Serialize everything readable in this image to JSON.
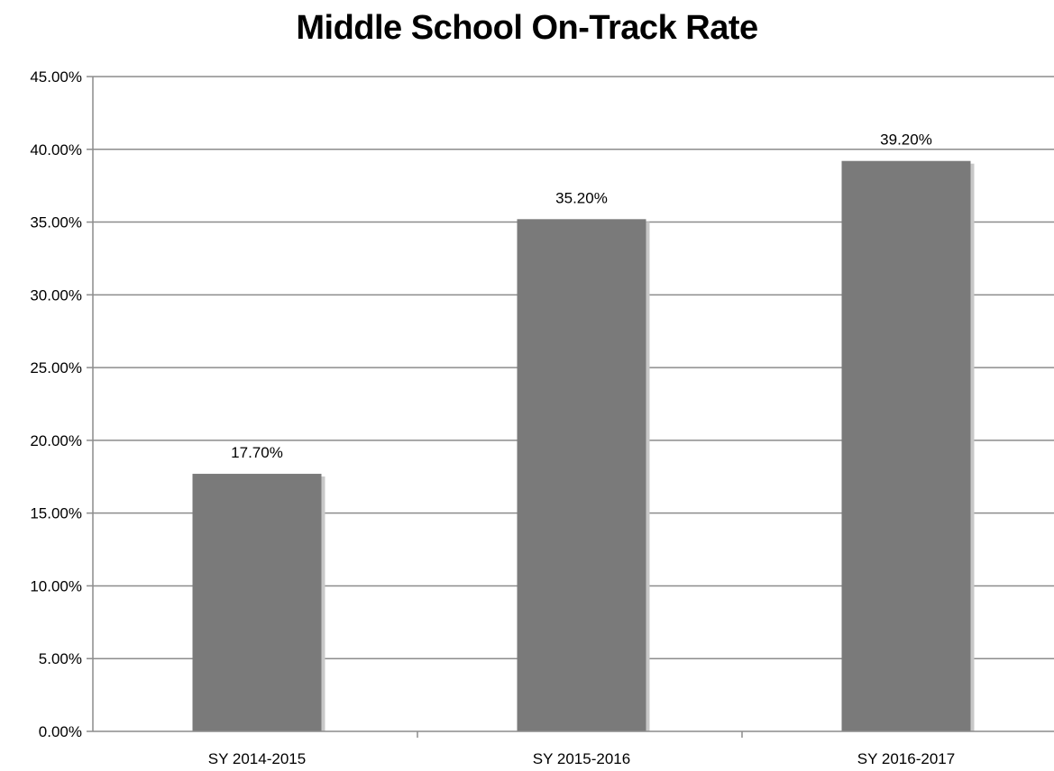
{
  "chart_data": {
    "type": "bar",
    "title": "Middle School On-Track Rate",
    "xlabel": "",
    "ylabel": "",
    "categories": [
      "SY 2014-2015",
      "SY 2015-2016",
      "SY 2016-2017"
    ],
    "values": [
      17.7,
      35.2,
      39.2
    ],
    "data_labels": [
      "17.70%",
      "35.20%",
      "39.20%"
    ],
    "ylim": [
      0,
      45
    ],
    "y_ticks": [
      0,
      5,
      10,
      15,
      20,
      25,
      30,
      35,
      40,
      45
    ],
    "y_tick_labels": [
      "0.00%",
      "5.00%",
      "10.00%",
      "15.00%",
      "20.00%",
      "25.00%",
      "30.00%",
      "35.00%",
      "40.00%",
      "45.00%"
    ],
    "grid": true,
    "legend": "none",
    "colors": {
      "bar": "#7a7a7a",
      "shadow": "#c8c8c8",
      "grid": "#8c8c8c",
      "axis": "#8c8c8c"
    }
  }
}
